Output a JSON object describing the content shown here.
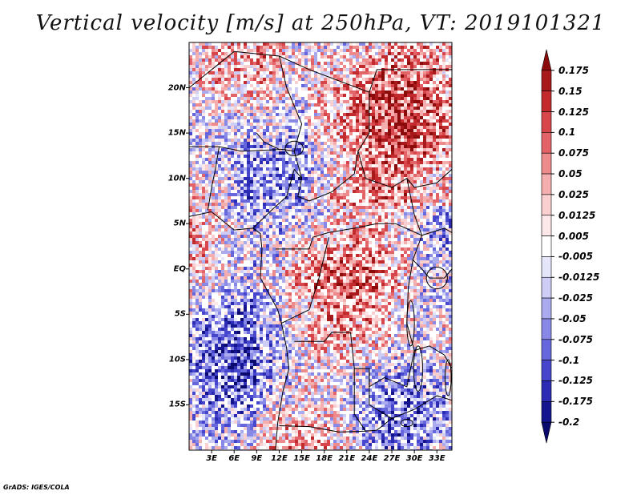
{
  "title": "Vertical velocity [m/s] at 250hPa, VT: 2019101321",
  "credit": "GrADS: IGES/COLA",
  "map": {
    "variable": "Vertical velocity",
    "units": "m/s",
    "level": "250hPa",
    "valid_time": "2019101321",
    "lon_range": [
      0,
      35
    ],
    "lat_range": [
      -20,
      25
    ],
    "lat_labels": [
      "20N",
      "15N",
      "10N",
      "5N",
      "EQ",
      "5S",
      "10S",
      "15S"
    ],
    "lat_values": [
      20,
      15,
      10,
      5,
      0,
      -5,
      -10,
      -15
    ],
    "lon_labels": [
      "3E",
      "6E",
      "9E",
      "12E",
      "15E",
      "18E",
      "21E",
      "24E",
      "27E",
      "30E",
      "33E"
    ],
    "lon_values": [
      3,
      6,
      9,
      12,
      15,
      18,
      21,
      24,
      27,
      30,
      33
    ]
  },
  "colorbar": {
    "labels": [
      "0.175",
      "0.15",
      "0.125",
      "0.1",
      "0.075",
      "0.05",
      "0.025",
      "0.0125",
      "0.005",
      "-0.005",
      "-0.0125",
      "-0.025",
      "-0.05",
      "-0.075",
      "-0.1",
      "-0.125",
      "-0.175",
      "-0.2"
    ],
    "colors": [
      "#8b0b0b",
      "#a8191c",
      "#c22a2e",
      "#d6464a",
      "#e36468",
      "#ec8a8c",
      "#f4aeae",
      "#f9cfcf",
      "#fce8e8",
      "#ffffff",
      "#e6e6fb",
      "#cdcdf6",
      "#aaaaee",
      "#8888e6",
      "#6666dd",
      "#4646cc",
      "#2b2bb3",
      "#14148f",
      "#0a0a6e"
    ],
    "high_color": "#8b0b0b",
    "low_color": "#0a0a6e"
  }
}
